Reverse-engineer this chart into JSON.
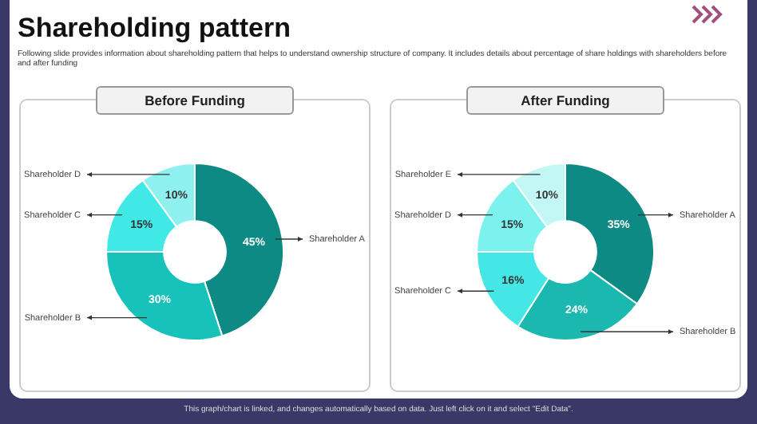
{
  "chart_data": [
    {
      "type": "donut",
      "title": "Before Funding",
      "categories": [
        "Shareholder A",
        "Shareholder B",
        "Shareholder C",
        "Shareholder D"
      ],
      "values": [
        45,
        30,
        15,
        10
      ],
      "value_labels": [
        "45%",
        "30%",
        "15%",
        "10%"
      ],
      "colors": [
        "#0e8a85",
        "#17c2ba",
        "#40e8e6",
        "#8ff1ef"
      ],
      "legend": false,
      "annotations": [
        "Shareholding pattern",
        "Following slide provides information about shareholding pattern that helps to understand ownership structure of company. It includes details about percentage of share holdings with shareholders before and after funding"
      ]
    },
    {
      "type": "donut",
      "title": "After Funding",
      "categories": [
        "Shareholder A",
        "Shareholder B",
        "Shareholder C",
        "Shareholder D",
        "Shareholder E"
      ],
      "values": [
        35,
        24,
        16,
        15,
        10
      ],
      "value_labels": [
        "35%",
        "24%",
        "16%",
        "15%",
        "10%"
      ],
      "colors": [
        "#0e8a85",
        "#1bb8b0",
        "#45e6e6",
        "#7cf2ef",
        "#c3f7f6"
      ],
      "legend": false,
      "annotations": [
        "This graph/chart is linked, and changes automatically based on data. Just left click on it and select \"Edit Data\"."
      ]
    }
  ]
}
